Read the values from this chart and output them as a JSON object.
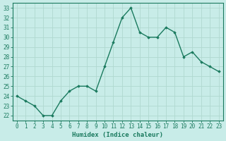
{
  "xlabel": "Humidex (Indice chaleur)",
  "ylabel": "",
  "x": [
    0,
    1,
    2,
    3,
    4,
    5,
    6,
    7,
    8,
    9,
    10,
    11,
    12,
    13,
    14,
    15,
    16,
    17,
    18,
    19,
    20,
    21,
    22,
    23
  ],
  "y": [
    24,
    23.5,
    23,
    22,
    22,
    23.5,
    24.5,
    25,
    25,
    24.5,
    27,
    29.5,
    32,
    33,
    30.5,
    30,
    30,
    31,
    30.5,
    28,
    28.5,
    27.5,
    27,
    26.5
  ],
  "line_color": "#1a7a5e",
  "marker": "D",
  "marker_size": 1.8,
  "line_width": 1.0,
  "bg_color": "#c8ece8",
  "grid_major_color": "#b0d8d0",
  "grid_minor_color": "#d0eae6",
  "ylim": [
    21.5,
    33.5
  ],
  "xlim": [
    -0.5,
    23.5
  ],
  "yticks": [
    22,
    23,
    24,
    25,
    26,
    27,
    28,
    29,
    30,
    31,
    32,
    33
  ],
  "xticks": [
    0,
    1,
    2,
    3,
    4,
    5,
    6,
    7,
    8,
    9,
    10,
    11,
    12,
    13,
    14,
    15,
    16,
    17,
    18,
    19,
    20,
    21,
    22,
    23
  ],
  "tick_fontsize": 5.5,
  "label_fontsize": 6.5
}
